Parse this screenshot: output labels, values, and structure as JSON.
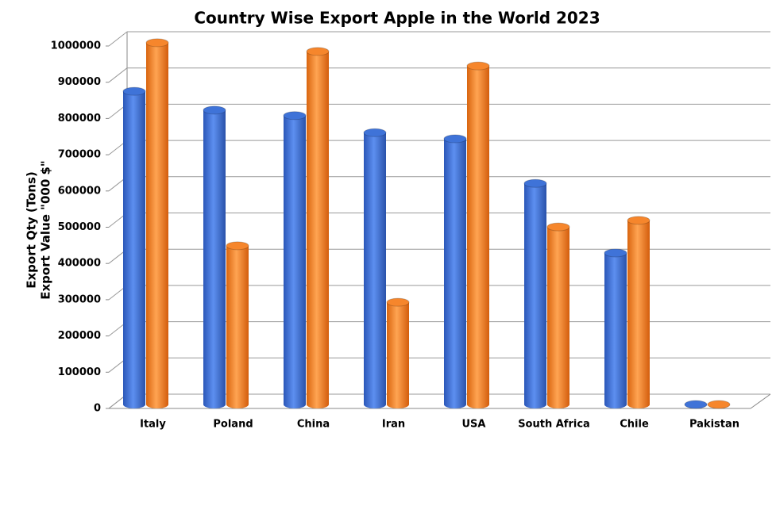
{
  "chart_data": {
    "type": "bar3d",
    "title": "Country Wise Export Apple in the World 2023",
    "y_label": [
      "Export Qty (Tons)",
      "Export Value \"000 $\""
    ],
    "categories": [
      "Italy",
      "Poland",
      "China",
      "Iran",
      "USA",
      "South Africa",
      "Chile",
      "Pakistan"
    ],
    "series": [
      {
        "color": "#3f73d8",
        "values": [
          864000,
          812000,
          797000,
          750000,
          733000,
          610000,
          418000,
          0
        ]
      },
      {
        "color": "#f6862c",
        "values": [
          998000,
          438000,
          974000,
          282000,
          934000,
          490000,
          508000,
          0
        ]
      }
    ],
    "ylim": [
      0,
      1000000
    ],
    "yticks": [
      0,
      100000,
      200000,
      300000,
      400000,
      500000,
      600000,
      700000,
      800000,
      900000,
      1000000
    ],
    "grid": true
  }
}
